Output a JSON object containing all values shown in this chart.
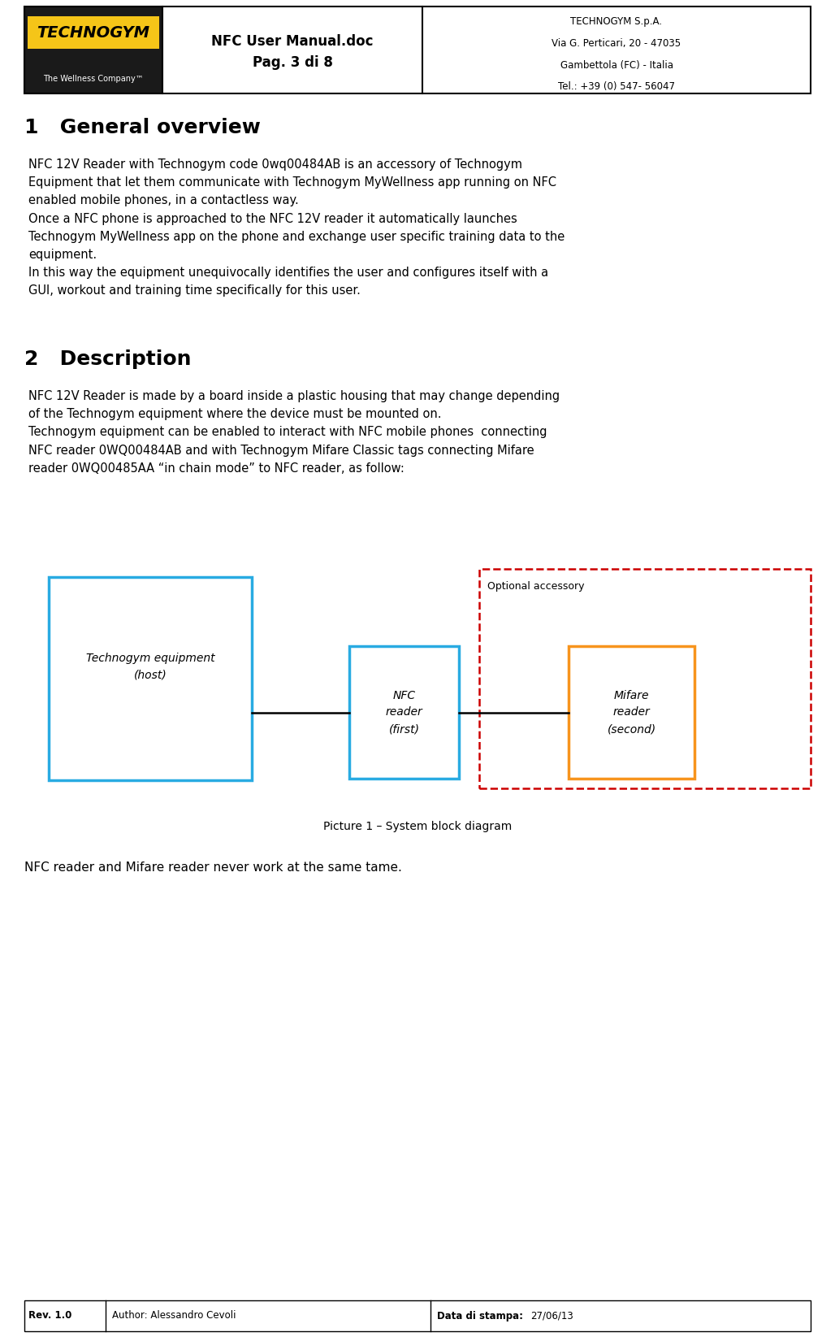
{
  "page_width": 10.28,
  "page_height": 16.5,
  "dpi": 100,
  "bg_color": "#ffffff",
  "header": {
    "center_title": "NFC User Manual.doc",
    "center_subtitle": "Pag. 3 di 8",
    "right_lines": [
      "TECHNOGYM S.p.A.",
      "Via G. Perticari, 20 - 47035",
      "Gambettola (FC) - Italia",
      "Tel.: +39 (0) 547- 56047"
    ],
    "logo_bg_dark": "#1a1a1a",
    "logo_yellow": "#f5c518",
    "logo_text": "TECHNOGYM",
    "logo_subtext": "The Wellness Company™"
  },
  "section1_title": "1   General overview",
  "section1_text": "NFC 12V Reader with Technogym code 0wq00484AB is an accessory of Technogym\nEquipment that let them communicate with Technogym MyWellness app running on NFC\nenabled mobile phones, in a contactless way.\nOnce a NFC phone is approached to the NFC 12V reader it automatically launches\nTechnogym MyWellness app on the phone and exchange user specific training data to the\nequipment.\nIn this way the equipment unequivocally identifies the user and configures itself with a\nGUI, workout and training time specifically for this user.",
  "section2_title": "2   Description",
  "section2_text": "NFC 12V Reader is made by a board inside a plastic housing that may change depending\nof the Technogym equipment where the device must be mounted on.\nTechnogym equipment can be enabled to interact with NFC mobile phones  connecting\nNFC reader 0WQ00484AB and with Technogym Mifare Classic tags connecting Mifare\nreader 0WQ00485AA “in chain mode” to NFC reader, as follow:",
  "diagram": {
    "host_box_color": "#29abe2",
    "host_box_text": "Technogym equipment\n(host)",
    "nfc_box_color": "#29abe2",
    "nfc_box_text": "NFC\nreader\n(first)",
    "mifare_box_color": "#f7941d",
    "mifare_box_text": "Mifare\nreader\n(second)",
    "optional_dashed_color": "#cc0000",
    "optional_label": "Optional accessory"
  },
  "picture_caption": "Picture 1 – System block diagram",
  "note_text": "NFC reader and Mifare reader never work at the same tame.",
  "footer": {
    "rev": "Rev. 1.0",
    "author_text": "Author: Alessandro Cevoli",
    "date_bold": "Data di stampa:",
    "date_value": "27/06/13"
  }
}
